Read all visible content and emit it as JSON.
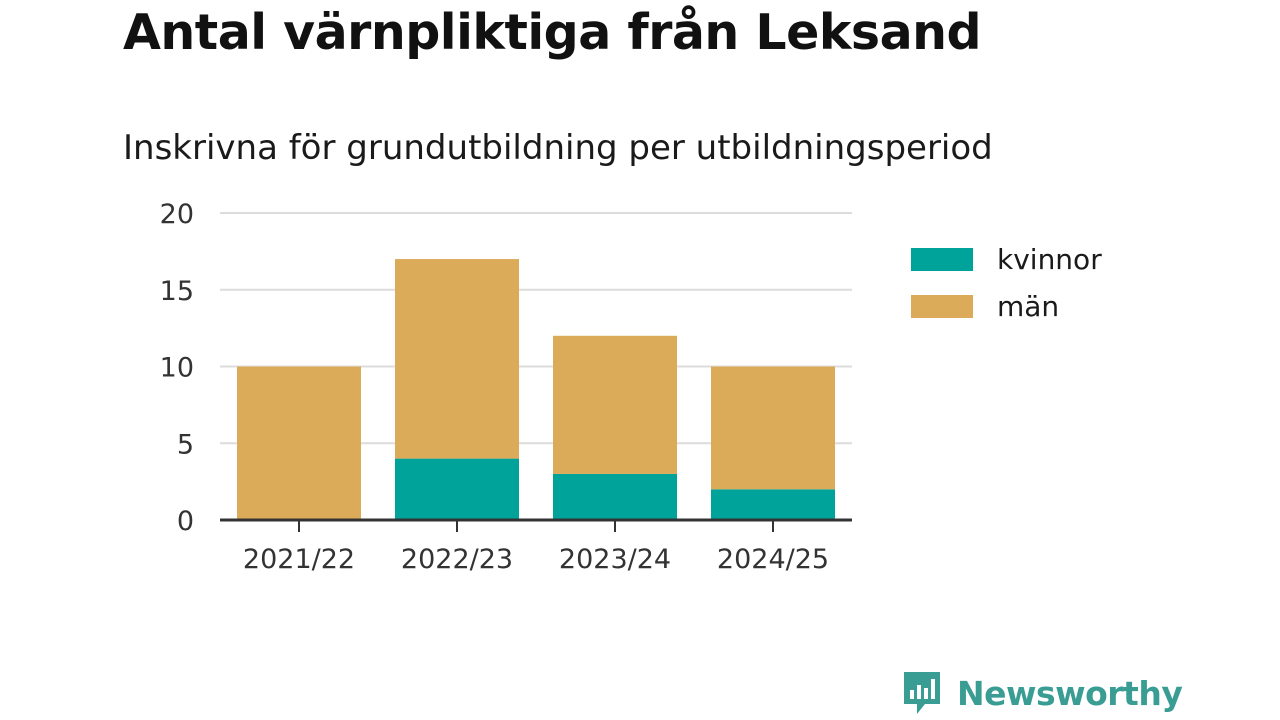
{
  "title": "Antal värnpliktiga från Leksand",
  "subtitle": "Inskrivna för grundutbildning per utbildningsperiod",
  "brand": {
    "name": "Newsworthy",
    "icon": "newsworthy-logo-icon",
    "color": "#3a9d94"
  },
  "chart_data": {
    "type": "bar",
    "stacked": true,
    "categories": [
      "2021/22",
      "2022/23",
      "2023/24",
      "2024/25"
    ],
    "series": [
      {
        "name": "kvinnor",
        "color": "#00a39a",
        "values": [
          0,
          4,
          3,
          2
        ]
      },
      {
        "name": "män",
        "color": "#dbab5a",
        "values": [
          10,
          13,
          9,
          8
        ]
      }
    ],
    "title": "Antal värnpliktiga från Leksand",
    "subtitle": "Inskrivna för grundutbildning per utbildningsperiod",
    "xlabel": "",
    "ylabel": "",
    "ylim": [
      0,
      20
    ],
    "yticks": [
      0,
      5,
      10,
      15,
      20
    ],
    "grid": true,
    "legend": "right"
  }
}
